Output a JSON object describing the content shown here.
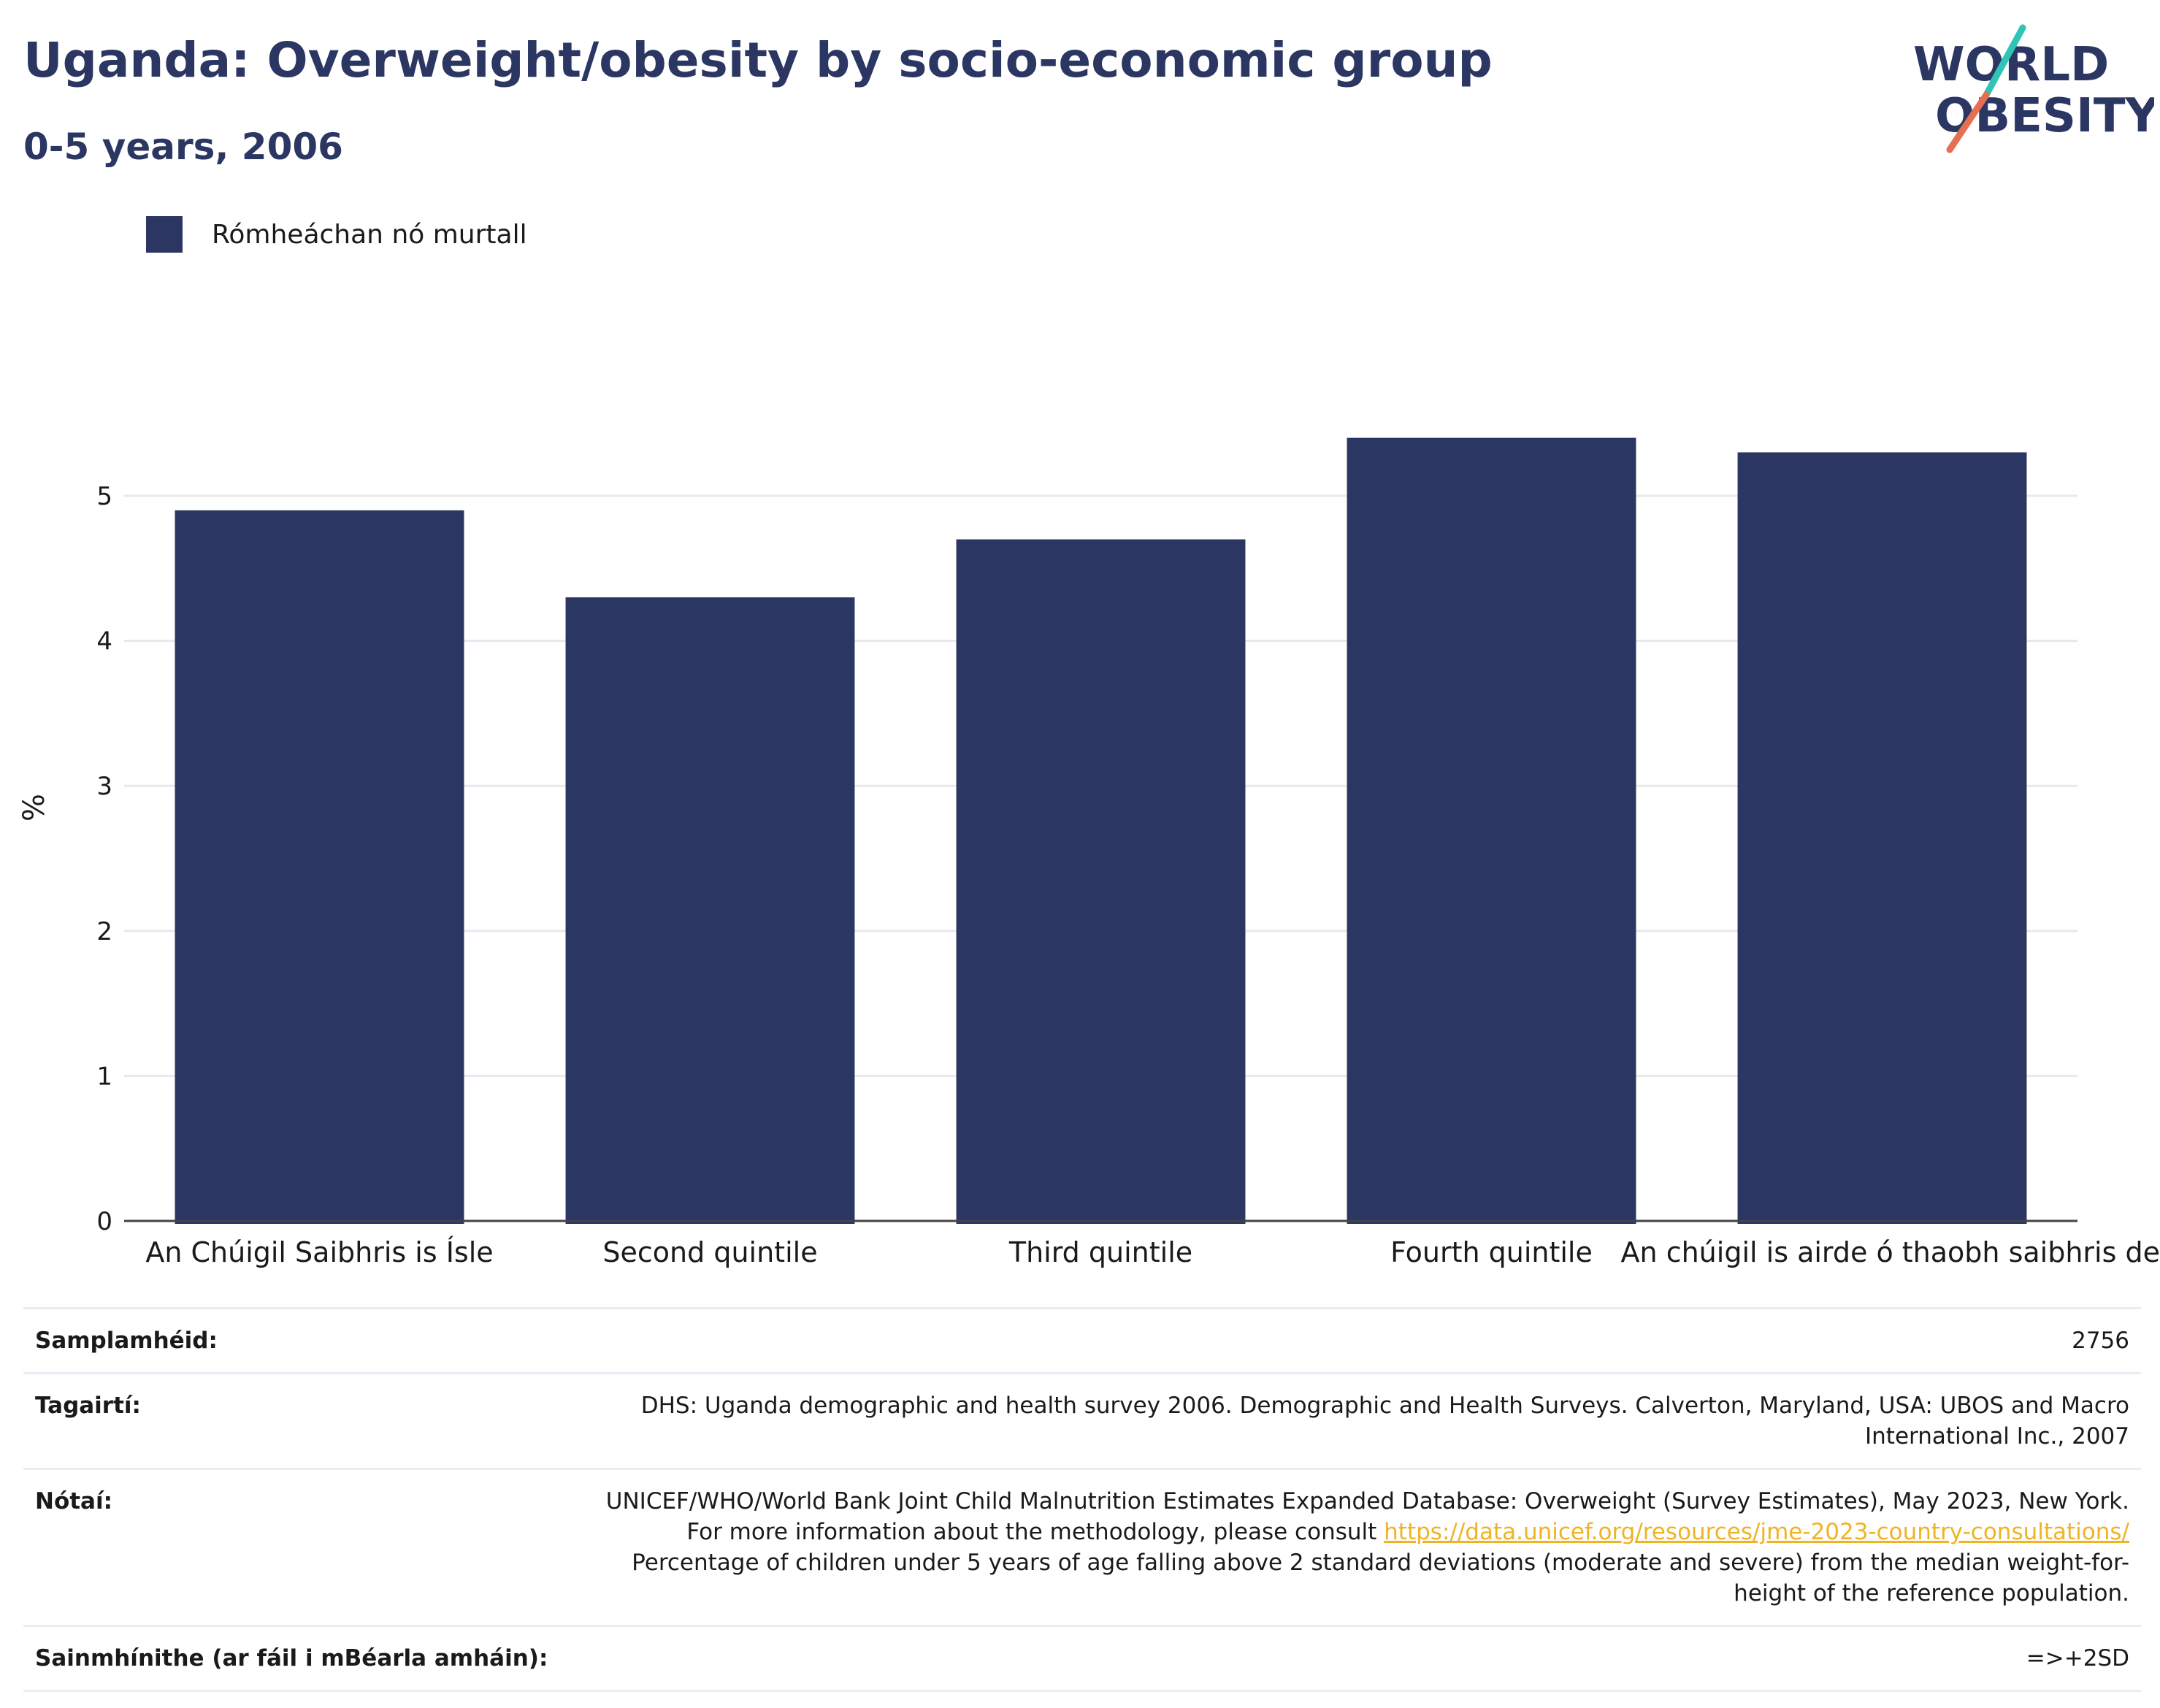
{
  "title": "Uganda: Overweight/obesity by socio-economic group",
  "subtitle": "0-5 years, 2006",
  "logo": {
    "line1": "WORLD",
    "line2": "OBESITY",
    "accent_colors": [
      "#2ec4b6",
      "#e76f51"
    ]
  },
  "legend": {
    "label": "Rómheáchan nó murtall",
    "color": "#2b3762"
  },
  "chart_data": {
    "type": "bar",
    "categories": [
      "An Chúigil Saibhris is Ísle",
      "Second quintile",
      "Third quintile",
      "Fourth quintile",
      "An chúigil is airde ó thaobh saibhris de"
    ],
    "series": [
      {
        "name": "Rómheáchan nó murtall",
        "values": [
          4.9,
          4.3,
          4.7,
          5.4,
          5.3
        ],
        "color": "#2b3762"
      }
    ],
    "ylabel": "%",
    "yticks": [
      0,
      1,
      2,
      3,
      4,
      5
    ],
    "ylim": [
      0,
      5.7
    ],
    "grid": true,
    "legend_position": "top-left"
  },
  "info": {
    "sample_label": "Samplamhéid:",
    "sample_value": "2756",
    "ref_label": "Tagairtí:",
    "ref_value": "DHS: Uganda demographic and health survey 2006. Demographic and Health Surveys. Calverton, Maryland, USA: UBOS and Macro International Inc., 2007",
    "notes_label": "Nótaí:",
    "notes_text1": "UNICEF/WHO/World Bank Joint Child Malnutrition Estimates Expanded Database: Overweight (Survey Estimates), May 2023, New York. For more information about the methodology, please consult",
    "notes_link": "https://data.unicef.org/resources/jme-2023-country-consultations/",
    "notes_text2": "Percentage of children under 5 years of age falling above 2 standard deviations (moderate and severe) from the median weight-for-height of the reference population.",
    "def_label": "Sainmhínithe (ar fáil i mBéarla amháin):",
    "def_value": "=>+2SD"
  }
}
